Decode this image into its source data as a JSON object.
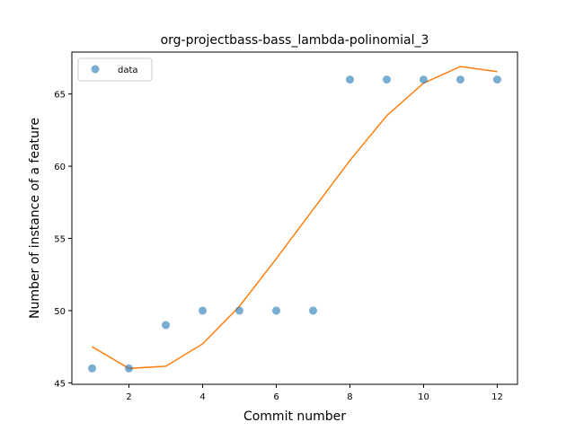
{
  "chart_data": {
    "type": "scatter",
    "title": "org-projectbass-bass_lambda-polinomial_3",
    "xlabel": "Commit number",
    "ylabel": "Number of instance of a feature",
    "xlim": [
      0.45,
      12.55
    ],
    "ylim": [
      44.9,
      67.9
    ],
    "xticks": [
      2,
      4,
      6,
      8,
      10,
      12
    ],
    "yticks": [
      45,
      50,
      55,
      60,
      65
    ],
    "grid": false,
    "legend": {
      "placement": "upper-left",
      "entries": [
        "data"
      ]
    },
    "series": [
      {
        "name": "data",
        "kind": "scatter",
        "color": "#1f77b4",
        "x": [
          1,
          2,
          3,
          4,
          5,
          6,
          7,
          8,
          9,
          10,
          11,
          12
        ],
        "y": [
          46,
          46,
          49,
          50,
          50,
          50,
          50,
          66,
          66,
          66,
          66,
          66
        ]
      },
      {
        "kind": "line",
        "color": "#ff7f0e",
        "x": [
          1,
          2,
          3,
          4,
          5,
          6,
          7,
          8,
          9,
          10,
          11,
          12
        ],
        "y": [
          47.5,
          46.0,
          46.15,
          47.7,
          50.3,
          53.6,
          57.0,
          60.4,
          63.5,
          65.75,
          66.9,
          66.55
        ]
      }
    ]
  }
}
